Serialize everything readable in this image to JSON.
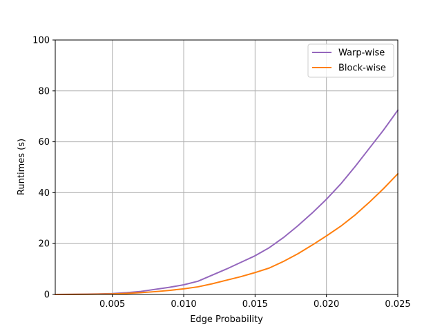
{
  "chart_data": {
    "type": "line",
    "title": "",
    "xlabel": "Edge Probability",
    "ylabel": "Runtimes (s)",
    "xlim": [
      0.001,
      0.025
    ],
    "ylim": [
      0,
      100
    ],
    "xticks": [
      0.005,
      0.01,
      0.015,
      0.02,
      0.025
    ],
    "xtick_labels": [
      "0.005",
      "0.010",
      "0.015",
      "0.020",
      "0.025"
    ],
    "yticks": [
      0,
      20,
      40,
      60,
      80,
      100
    ],
    "ytick_labels": [
      "0",
      "20",
      "40",
      "60",
      "80",
      "100"
    ],
    "grid": true,
    "legend_position": "top-right",
    "series": [
      {
        "name": "Warp-wise",
        "color": "#9467bd",
        "x": [
          0.001,
          0.002,
          0.003,
          0.004,
          0.005,
          0.006,
          0.007,
          0.008,
          0.009,
          0.01,
          0.011,
          0.012,
          0.013,
          0.014,
          0.015,
          0.016,
          0.017,
          0.018,
          0.019,
          0.02,
          0.021,
          0.022,
          0.023,
          0.024,
          0.025
        ],
        "y": [
          0.0,
          0.05,
          0.1,
          0.2,
          0.35,
          0.7,
          1.2,
          2.0,
          2.8,
          3.8,
          5.2,
          7.6,
          10.0,
          12.6,
          15.2,
          18.4,
          22.4,
          27.0,
          32.0,
          37.4,
          43.4,
          50.2,
          57.4,
          64.6,
          72.4
        ]
      },
      {
        "name": "Block-wise",
        "color": "#ff7f0e",
        "x": [
          0.001,
          0.002,
          0.003,
          0.004,
          0.005,
          0.006,
          0.007,
          0.008,
          0.009,
          0.01,
          0.011,
          0.012,
          0.013,
          0.014,
          0.015,
          0.016,
          0.017,
          0.018,
          0.019,
          0.02,
          0.021,
          0.022,
          0.023,
          0.024,
          0.025
        ],
        "y": [
          0.0,
          0.03,
          0.06,
          0.12,
          0.2,
          0.4,
          0.7,
          1.1,
          1.6,
          2.2,
          3.0,
          4.2,
          5.6,
          7.0,
          8.6,
          10.4,
          13.0,
          16.0,
          19.4,
          23.0,
          26.8,
          31.2,
          36.2,
          41.6,
          47.4
        ]
      }
    ]
  }
}
